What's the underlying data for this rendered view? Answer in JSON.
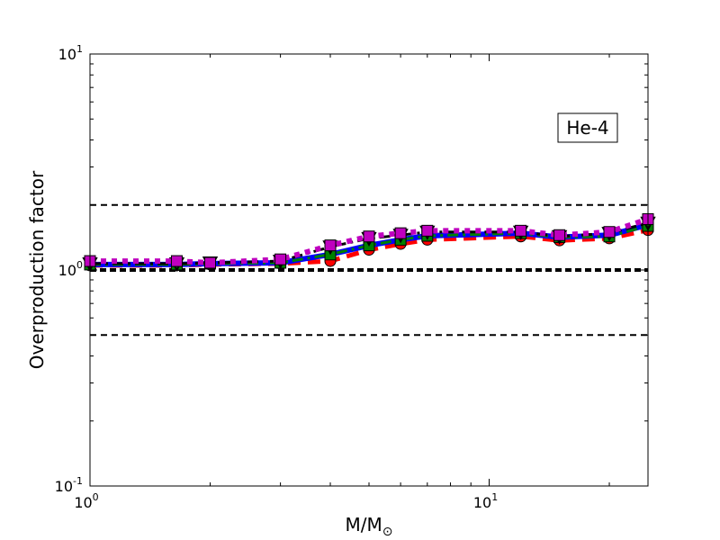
{
  "chart_data": {
    "type": "line",
    "title": "",
    "xlabel": "M/M",
    "xlabel_subscript": "⊙",
    "ylabel": "Overproduction factor",
    "xscale": "log",
    "yscale": "log",
    "xlim": [
      1,
      25
    ],
    "ylim": [
      0.1,
      10
    ],
    "x_ticks": [
      {
        "value": 1,
        "base": "10",
        "exp": "0"
      },
      {
        "value": 10,
        "base": "10",
        "exp": "1"
      }
    ],
    "y_ticks": [
      {
        "value": 0.1,
        "base": "10",
        "exp": "-1"
      },
      {
        "value": 1,
        "base": "10",
        "exp": "0"
      },
      {
        "value": 10,
        "base": "10",
        "exp": "1"
      }
    ],
    "annotation": "He-4",
    "reference_lines": [
      {
        "y": 2.0,
        "style": "dashed"
      },
      {
        "y": 1.0,
        "style": "dashed-thick"
      },
      {
        "y": 0.5,
        "style": "dashed"
      }
    ],
    "series": [
      {
        "color": "#ff0000",
        "marker": "circle",
        "linestyle": "dashed",
        "x": [
          1,
          1.65,
          2,
          3,
          4,
          5,
          6,
          7,
          12,
          15,
          20,
          25
        ],
        "y": [
          1.05,
          1.05,
          1.06,
          1.07,
          1.1,
          1.24,
          1.32,
          1.38,
          1.43,
          1.37,
          1.4,
          1.53
        ]
      },
      {
        "color": "#0000ff",
        "marker": "none",
        "linestyle": "solid",
        "x": [
          1,
          1.65,
          2,
          3,
          4,
          5,
          6,
          7,
          12,
          15,
          20,
          25
        ],
        "y": [
          1.06,
          1.06,
          1.07,
          1.08,
          1.18,
          1.3,
          1.38,
          1.44,
          1.48,
          1.42,
          1.45,
          1.62
        ]
      },
      {
        "color": "#008000",
        "marker": "square",
        "linestyle": "dashdot",
        "x": [
          1,
          1.65,
          2,
          3,
          4,
          5,
          6,
          7,
          12,
          15,
          20,
          25
        ],
        "y": [
          1.06,
          1.06,
          1.07,
          1.08,
          1.18,
          1.3,
          1.38,
          1.44,
          1.48,
          1.42,
          1.43,
          1.6
        ]
      },
      {
        "color": "#000000",
        "marker": "triangle-down",
        "linestyle": "dashdot",
        "x": [
          1,
          1.65,
          2,
          3,
          4,
          5,
          6,
          7,
          12,
          15,
          20,
          25
        ],
        "y": [
          1.07,
          1.07,
          1.08,
          1.1,
          1.28,
          1.4,
          1.45,
          1.5,
          1.5,
          1.43,
          1.48,
          1.65
        ]
      },
      {
        "color": "#bf00bf",
        "marker": "square",
        "linestyle": "dotted",
        "x": [
          1,
          1.65,
          2,
          3,
          4,
          5,
          6,
          7,
          12,
          15,
          20,
          25
        ],
        "y": [
          1.1,
          1.1,
          1.08,
          1.12,
          1.3,
          1.43,
          1.48,
          1.52,
          1.52,
          1.45,
          1.5,
          1.72
        ]
      }
    ]
  }
}
